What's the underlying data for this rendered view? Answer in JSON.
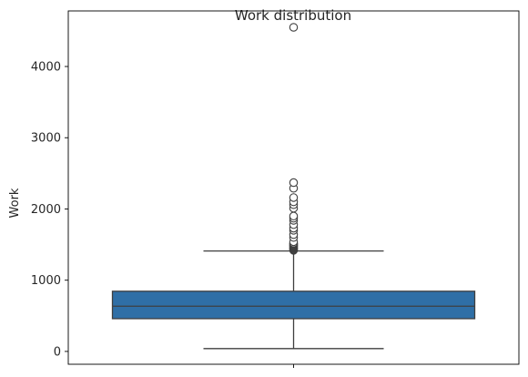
{
  "chart_data": {
    "type": "box",
    "title": "Work distribution",
    "xlabel": "",
    "ylabel": "Work",
    "ylim": [
      -180,
      4780
    ],
    "yticks": [
      0,
      1000,
      2000,
      3000,
      4000
    ],
    "grid": false,
    "series": [
      {
        "whisker_low": 40,
        "q1": 460,
        "median": 635,
        "q3": 845,
        "whisker_high": 1410,
        "outliers": [
          1420,
          1430,
          1440,
          1450,
          1460,
          1470,
          1480,
          1490,
          1500,
          1510,
          1520,
          1540,
          1600,
          1640,
          1700,
          1730,
          1780,
          1840,
          1870,
          1900,
          2010,
          2060,
          2100,
          2160,
          2290,
          2370,
          4550
        ]
      }
    ],
    "colors": {
      "box": "#2f6fa6",
      "line": "#3f3f3f",
      "outlier_face": "#ffffff",
      "axis": "#000000"
    }
  }
}
